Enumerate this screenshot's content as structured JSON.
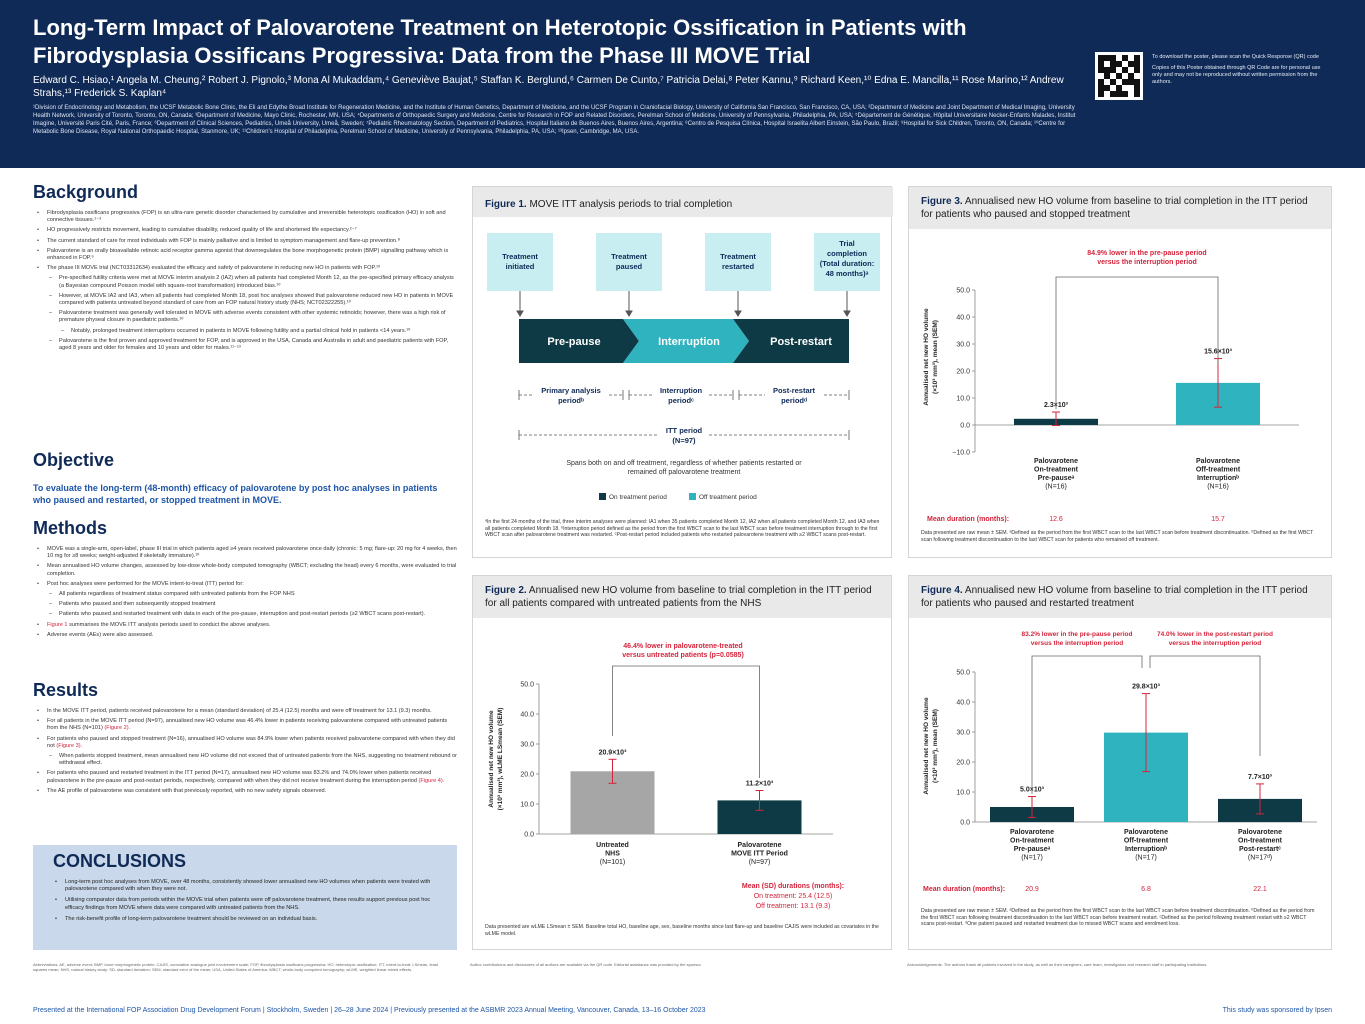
{
  "header": {
    "title": "Long-Term Impact of Palovarotene Treatment on Heterotopic Ossification in Patients with Fibrodysplasia Ossificans Progressiva: Data from the Phase III MOVE Trial",
    "authors": "Edward C. Hsiao,¹ Angela M. Cheung,² Robert J. Pignolo,³ Mona Al Mukaddam,⁴ Geneviève Baujat,⁵ Staffan K. Berglund,⁶ Carmen De Cunto,⁷ Patricia Delai,⁸ Peter Kannu,⁹ Richard Keen,¹⁰ Edna E. Mancilla,¹¹ Rose Marino,¹² Andrew Strahs,¹³ Frederick S. Kaplan⁴",
    "affiliations": "¹Division of Endocrinology and Metabolism, the UCSF Metabolic Bone Clinic, the Eli and Edythe Broad Institute for Regeneration Medicine, and the Institute of Human Genetics, Department of Medicine, and the UCSF Program in Craniofacial Biology, University of California San Francisco, San Francisco, CA, USA; ²Department of Medicine and Joint Department of Medical Imaging, University Health Network, University of Toronto, Toronto, ON, Canada; ³Department of Medicine, Mayo Clinic, Rochester, MN, USA; ⁴Departments of Orthopaedic Surgery and Medicine, Centre for Research in FOP and Related Disorders, Perelman School of Medicine, University of Pennsylvania, Philadelphia, PA, USA; ⁵Département de Génétique, Hôpital Universitaire Necker-Enfants Malades, Institut Imagine, Université Paris Cité, Paris, France; ⁶Department of Clinical Sciences, Pediatrics, Umeå University, Umeå, Sweden; ⁷Pediatric Rheumatology Section, Department of Pediatrics, Hospital Italiano de Buenos Aires, Buenos Aires, Argentina; ⁸Centro de Pesquisa Clínica, Hospital Israelita Albert Einstein, São Paulo, Brazil; ⁹Hospital for Sick Children, Toronto, ON, Canada; ¹⁰Centre for Metabolic Bone Disease, Royal National Orthopaedic Hospital, Stanmore, UK; ¹¹Children's Hospital of Philadelphia, Perelman School of Medicine, University of Pennsylvania, Philadelphia, PA, USA; ¹³Ipsen, Cambridge, MA, USA.",
    "qr_text_1": "To download the poster, please scan the Quick Response (QR) code",
    "qr_text_2": "Copies of this Poster obtained through QR Code are for personal use only and may not be reproduced without written permission from the authors."
  },
  "background": {
    "heading": "Background",
    "b1": "Fibrodysplasia ossificans progressiva (FOP) is an ultra-rare genetic disorder characterised by cumulative and irreversible heterotopic ossification (HO) in soft and connective tissues.¹⁻³",
    "b2": "HO progressively restricts movement, leading to cumulative disability, reduced quality of life and shortened life expectancy.²⁻⁷",
    "b3": "The current standard of care for most individuals with FOP is mainly palliative and is limited to symptom management and flare-up prevention.⁸",
    "b4": "Palovarotene is an orally bioavailable retinoic acid receptor gamma agonist that downregulates the bone morphogenetic protein (BMP) signalling pathway which is enhanced in FOP.⁹",
    "b5": "The phase III MOVE trial (NCT03312634) evaluated the efficacy and safety of palovarotene in reducing new HO in patients with FOP.¹⁰",
    "s1": "Pre-specified futility criteria were met at MOVE interim analysis 2 (IA2) when all patients had completed Month 12, as the pre-specified primary efficacy analysis (a Bayesian compound Poisson model with square-root transformation) introduced bias.¹⁰",
    "s2": "However, at MOVE IA2 and IA3, when all patients had completed Month 18, post hoc analyses showed that palovarotene reduced new HO in patients in MOVE compared with patients untreated beyond standard of care from an FOP natural history study (NHS; NCT02322255).¹⁰",
    "s3": "Palovarotene treatment was generally well tolerated in MOVE with adverse events consistent with other systemic retinoids; however, there was a high risk of premature physeal closure in paediatric patients.¹⁰",
    "ss1": "Notably, prolonged treatment interruptions occurred in patients in MOVE following futility and a partial clinical hold in patients <14 years.¹⁰",
    "s4": "Palovarotene is the first proven and approved treatment for FOP, and is approved in the USA, Canada and Australia in adult and paediatric patients with FOP, aged 8 years and older for females and 10 years and older for males.¹¹⁻¹³"
  },
  "objective": {
    "heading": "Objective",
    "text": "To evaluate the long-term (48-month) efficacy of palovarotene by post hoc analyses in patients who paused and restarted, or stopped treatment in MOVE."
  },
  "methods": {
    "heading": "Methods",
    "b1": "MOVE was a single-arm, open-label, phase III trial in which patients aged ≥4 years received palovarotene once daily (chronic: 5 mg; flare-up: 20 mg for 4 weeks, then 10 mg for ≥8 weeks; weight-adjusted if skeletally immature).¹⁰",
    "b2": "Mean annualised HO volume changes, assessed by low-dose whole-body computed tomography (WBCT; excluding the head) every 6 months, were evaluated to trial completion.",
    "b3": "Post hoc analyses were performed for the MOVE intent-to-treat (ITT) period for:",
    "s1": "All patients regardless of treatment status compared with untreated patients from the FOP NHS",
    "s2": "Patients who paused and then subsequently stopped treatment",
    "s3": "Patients who paused and restarted treatment with data in each of the pre-pause, interruption and post-restart periods (≥2 WBCT scans post-restart).",
    "b4_link": "Figure 1",
    "b4": " summarises the MOVE ITT analysis periods used to conduct the above analyses.",
    "b5": "Adverse events (AEs) were also assessed."
  },
  "results": {
    "heading": "Results",
    "b1": "In the MOVE ITT period, patients received palovarotene for a mean (standard deviation) of 25.4 (12.5) months and were off treatment for 13.1 (9.3) months.",
    "b2": "For all patients in the MOVE ITT period (N=97), annualised new HO volume was 46.4% lower in patients receiving palovarotene compared with untreated patients from the NHS (N=101) ",
    "b2_link": "(Figure 2).",
    "b3": "For patients who paused and stopped treatment (N=16), annualised HO volume was 84.9% lower when patients received palovarotene compared with when they did not ",
    "b3_link": "(Figure 3).",
    "s1": "When patients stopped treatment, mean annualised new HO volume did not exceed that of untreated patients from the NHS, suggesting no treatment rebound or withdrawal effect.",
    "b4": "For patients who paused and restarted treatment in the ITT period (N=17), annualised new HO volume was 83.2% and 74.0% lower when patients received palovarotene in the pre-pause and post-restart periods, respectively, compared with when they did not receive treatment during the interruption period ",
    "b4_link": "(Figure 4).",
    "b5": "The AE profile of palovarotene was consistent with that previously reported, with no new safety signals observed."
  },
  "conclusions": {
    "heading": "CONCLUSIONS",
    "b1": "Long-term post hoc analyses from MOVE, over 48 months, consistently showed lower annualised new HO volumes when patients were treated with palovarotene compared with when they were not.",
    "b2": "Utilising comparator data from periods within the MOVE trial when patients were off palovarotene treatment, these results support previous post hoc efficacy findings from MOVE where data were compared with untreated patients from the NHS.",
    "b3": "The risk-benefit profile of long-term palovarotene treatment should be reviewed on an individual basis."
  },
  "fig1": {
    "num": "Figure 1.",
    "title": " MOVE ITT analysis periods to trial completion",
    "box1_l1": "Treatment",
    "box1_l2": "initiated",
    "box2_l1": "Treatment",
    "box2_l2": "paused",
    "box3_l1": "Treatment",
    "box3_l2": "restarted",
    "box4_l1": "Trial",
    "box4_l2": "completion",
    "box4_l3": "(Total duration:",
    "box4_l4": "48 months)ᵃ",
    "arrow1": "Pre-pause",
    "arrow2": "Interruption",
    "arrow3": "Post-restart",
    "p1_l1": "Primary analysis",
    "p1_l2": "periodᵇ",
    "p2_l1": "Interruption",
    "p2_l2": "periodᶜ",
    "p3_l1": "Post-restart",
    "p3_l2": "periodᵈ",
    "itt_l1": "ITT period",
    "itt_l2": "(N=97)",
    "span_l1": "Spans both on and off treatment, regardless of whether patients restarted or",
    "span_l2": "remained off palovarotene treatment",
    "legend_on": "On treatment period",
    "legend_off": "Off treatment period",
    "footnote": "ᵃIn the first 24 months of the trial, three interim analyses were planned: IA1 when 35 patients completed Month 12, IA2 when all patients completed Month 12, and IA3 when all patients completed Month 18. ᵇInterruption period defined as the period from the first WBCT scan to the last WBCT scan before treatment interruption through to the first WBCT scan after palovarotene treatment was restarted. ᶜPost-restart period included patients who restarted palovarotene treatment with ≥2 WBCT scans post-restart."
  },
  "fig2": {
    "num": "Figure 2.",
    "title": " Annualised new HO volume from baseline to trial completion in the ITT period for all patients compared with untreated patients from the NHS",
    "annot_l1": "46.4% lower in palovarotene-treated",
    "annot_l2": "versus untreated patients (p=0.0585)",
    "ylabel_l1": "Annualised net new HO volume",
    "ylabel_l2": "(×10³ mm³), wLME LSmean (SEM)",
    "mean_dur_l1": "Mean (SD) durations (months):",
    "mean_dur_l2": "On treatment: 25.4 (12.5)",
    "mean_dur_l3": "Off treatment: 13.1 (9.3)",
    "footnote": "Data presented are wLME LSmean ± SEM. Baseline total HO, baseline age, sex, baseline months since last flare-up and baseline CAJIS were included as covariates in the wLME model."
  },
  "fig3": {
    "num": "Figure 3.",
    "title": " Annualised new HO volume from baseline to trial completion in the ITT period for patients who paused and stopped treatment",
    "annot_l1": "84.9% lower in the pre-pause period",
    "annot_l2": "versus the interruption period",
    "ylabel_l1": "Annualised net new HO volume",
    "ylabel_l2": "(×10³ mm³), mean (SEM)",
    "mean_dur_label": "Mean duration (months):",
    "footnote": "Data presented are raw mean ± SEM. ᵃDefined as the period from the first WBCT scan to the last WBCT scan before treatment discontinuation. ᵇDefined as the first WBCT scan following treatment discontinuation to the last WBCT scan for patients who remained off treatment."
  },
  "fig4": {
    "num": "Figure 4.",
    "title": " Annualised new HO volume from baseline to trial completion in the ITT period for patients who paused and restarted treatment",
    "annot1_l1": "83.2% lower in the pre-pause period",
    "annot1_l2": "versus the interruption period",
    "annot2_l1": "74.0% lower in the post-restart period",
    "annot2_l2": "versus the interruption period",
    "ylabel_l1": "Annualised net new HO volume",
    "ylabel_l2": "(×10³ mm³), mean (SEM)",
    "mean_dur_label": "Mean duration (months):",
    "footnote": "Data presented are raw mean ± SEM. ᵃDefined as the period from the first WBCT scan to the last WBCT scan before treatment discontinuation. ᵇDefined as the period from the first WBCT scan following treatment discontinuation to the last WBCT scan before treatment restart. ᶜDefined as the period following treatment restart with ≥2 WBCT scans post-restart. ᵈOne patient paused and restarted treatment due to missed WBCT scans and enrolment loss."
  },
  "chart_data": [
    {
      "type": "bar",
      "id": "figure-2",
      "categories": [
        "Untreated NHS (N=101)",
        "Palovarotene MOVE ITT Period (N=97)"
      ],
      "category_lines": [
        [
          "Untreated",
          "NHS",
          "(N=101)"
        ],
        [
          "Palovarotene",
          "MOVE ITT Period",
          "(N=97)"
        ]
      ],
      "values": [
        20.9,
        11.2
      ],
      "errors": [
        4.0,
        3.3
      ],
      "value_labels": [
        "20.9×10³",
        "11.2×10³"
      ],
      "colors": [
        "#a6a6a6",
        "#0e3a45"
      ],
      "ylim": [
        0,
        50
      ],
      "yticks": [
        0,
        10,
        20,
        30,
        40,
        50
      ],
      "ytick_labels": [
        "0.0",
        "10.0",
        "20.0",
        "30.0",
        "40.0",
        "50.0"
      ]
    },
    {
      "type": "bar",
      "id": "figure-3",
      "categories": [
        "Palovarotene On-treatment Pre-pause (N=16)",
        "Palovarotene Off-treatment Interruption (N=16)"
      ],
      "category_lines": [
        [
          "Palovarotene",
          "On-treatment",
          "Pre-pauseᵃ",
          "(N=16)"
        ],
        [
          "Palovarotene",
          "Off-treatment",
          "Interruptionᵇ",
          "(N=16)"
        ]
      ],
      "values": [
        2.3,
        15.6
      ],
      "errors": [
        2.5,
        9.0
      ],
      "value_labels": [
        "2.3×10³",
        "15.6×10³"
      ],
      "durations": [
        "12.6",
        "15.7"
      ],
      "colors": [
        "#0e3a45",
        "#2fb3bf"
      ],
      "ylim": [
        -10,
        50
      ],
      "yticks": [
        -10,
        0,
        10,
        20,
        30,
        40,
        50
      ],
      "ytick_labels": [
        "−10.0",
        "0.0",
        "10.0",
        "20.0",
        "30.0",
        "40.0",
        "50.0"
      ]
    },
    {
      "type": "bar",
      "id": "figure-4",
      "categories": [
        "Palovarotene On-treatment Pre-pause (N=17)",
        "Palovarotene Off-treatment Interruption (N=17)",
        "Palovarotene On-treatment Post-restart (N=17)"
      ],
      "category_lines": [
        [
          "Palovarotene",
          "On-treatment",
          "Pre-pauseᵃ",
          "(N=17)"
        ],
        [
          "Palovarotene",
          "Off-treatment",
          "Interruptionᵇ",
          "(N=17)"
        ],
        [
          "Palovarotene",
          "On-treatment",
          "Post-restartᶜ",
          "(N=17ᵈ)"
        ]
      ],
      "values": [
        5.0,
        29.8,
        7.7
      ],
      "errors": [
        3.5,
        13.0,
        5.0
      ],
      "value_labels": [
        "5.0×10³",
        "29.8×10³",
        "7.7×10³"
      ],
      "durations": [
        "20.9",
        "6.8",
        "22.1"
      ],
      "colors": [
        "#0e3a45",
        "#2fb3bf",
        "#0e3a45"
      ],
      "ylim": [
        0,
        50
      ],
      "yticks": [
        0,
        10,
        20,
        30,
        40,
        50
      ],
      "ytick_labels": [
        "0.0",
        "10.0",
        "20.0",
        "30.0",
        "40.0",
        "50.0"
      ]
    }
  ],
  "footer": {
    "left": "Presented at the International FOP Association Drug Development Forum | Stockholm, Sweden | 26–28 June 2024 | Previously presented at the ASBMR 2023 Annual Meeting, Vancouver, Canada, 13–16 October 2023",
    "right": "This study was sponsored by Ipsen",
    "abbrev": "Abbreviations: AE, adverse event; BMP, bone morphogenetic protein; CAJIS, cumulative analogue joint involvement scale; FOP, fibrodysplasia ossificans progressiva; HO, heterotopic ossification; ITT, intent-to-treat; LSmean, least squares mean; NHS, natural history study; SD, standard deviation; SEM, standard error of the mean; USA, United States of America; WBCT, whole-body computed tomography; wLME, weighted linear mixed effects.",
    "disclosures": "Author contributions and disclosures of all authors are available via the QR code. Editorial assistance was provided by the sponsor.",
    "ack": "Acknowledgements: The authors thank all patients involved in the study, as well as their caregivers, care team, investigators and research staff in participating institutions."
  }
}
